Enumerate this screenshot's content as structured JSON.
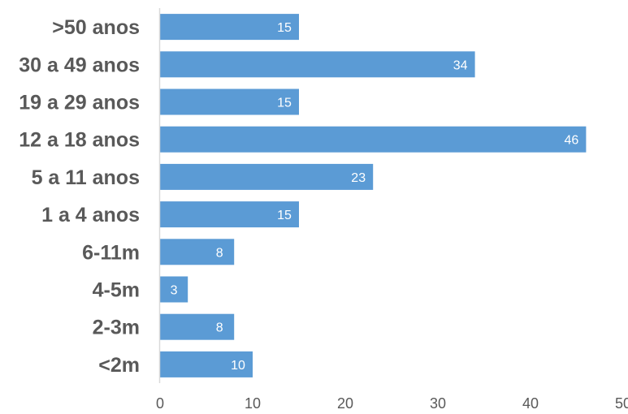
{
  "chart_data": {
    "type": "bar",
    "orientation": "horizontal",
    "categories": [
      ">50 anos",
      "30 a 49 anos",
      "19 a 29 anos",
      "12 a 18 anos",
      "5 a 11 anos",
      "1 a 4 anos",
      "6-11m",
      "4-5m",
      "2-3m",
      "<2m"
    ],
    "values": [
      15,
      34,
      15,
      46,
      23,
      15,
      8,
      3,
      8,
      10
    ],
    "xlim": [
      0,
      50
    ],
    "xticks": [
      0,
      10,
      20,
      30,
      40,
      50
    ],
    "title": "",
    "xlabel": "",
    "ylabel": "",
    "grid": false,
    "data_labels": true,
    "bar_color": "#5B9BD5",
    "axis_color": "#D9D9D9",
    "label_color": "#595959"
  }
}
